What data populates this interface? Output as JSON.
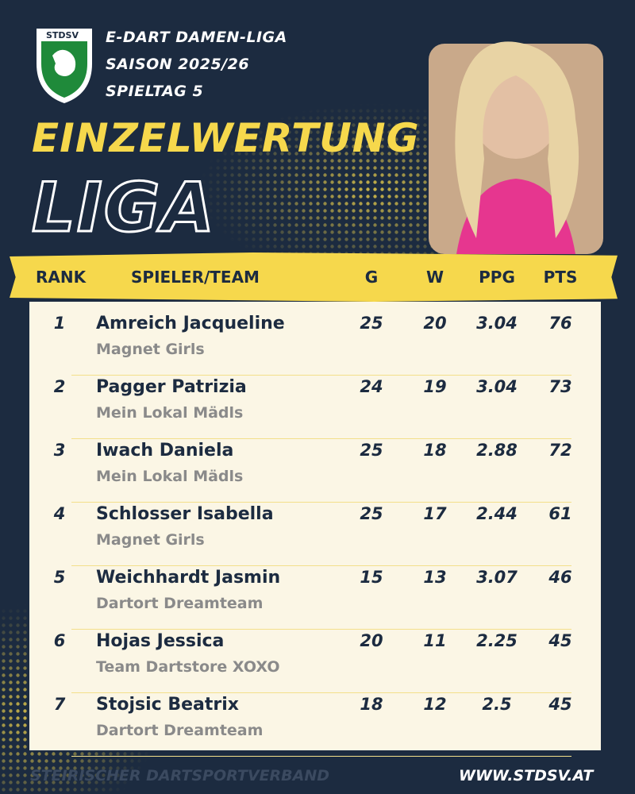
{
  "header": {
    "logo": "STDSV",
    "league": "E-DART DAMEN-LIGA",
    "season": "SAISON 2025/26",
    "matchday": "SPIELTAG 5",
    "title": "EINZELWERTUNG",
    "subtitle": "LIGA"
  },
  "table": {
    "columns": [
      "RANK",
      "SPIELER/TEAM",
      "G",
      "W",
      "PPG",
      "PTS"
    ],
    "rows": [
      {
        "rank": 1,
        "player": "Amreich Jacqueline",
        "team": "Magnet Girls",
        "g": 25,
        "w": 20,
        "ppg": 3.04,
        "pts": 76
      },
      {
        "rank": 2,
        "player": "Pagger Patrizia",
        "team": "Mein Lokal Mädls",
        "g": 24,
        "w": 19,
        "ppg": 3.04,
        "pts": 73
      },
      {
        "rank": 3,
        "player": "Iwach Daniela",
        "team": "Mein Lokal Mädls",
        "g": 25,
        "w": 18,
        "ppg": 2.88,
        "pts": 72
      },
      {
        "rank": 4,
        "player": "Schlosser Isabella",
        "team": "Magnet Girls",
        "g": 25,
        "w": 17,
        "ppg": 2.44,
        "pts": 61
      },
      {
        "rank": 5,
        "player": "Weichhardt Jasmin",
        "team": "Dartort Dreamteam",
        "g": 15,
        "w": 13,
        "ppg": 3.07,
        "pts": 46
      },
      {
        "rank": 6,
        "player": "Hojas Jessica",
        "team": "Team Dartstore XOXO",
        "g": 20,
        "w": 11,
        "ppg": 2.25,
        "pts": 45
      },
      {
        "rank": 7,
        "player": "Stojsic Beatrix",
        "team": "Dartort Dreamteam",
        "g": 18,
        "w": 12,
        "ppg": 2.5,
        "pts": 45
      }
    ]
  },
  "footer": {
    "association": "STEIRISCHER DARTSPORTVERBAND",
    "url": "WWW.STDSV.AT"
  }
}
